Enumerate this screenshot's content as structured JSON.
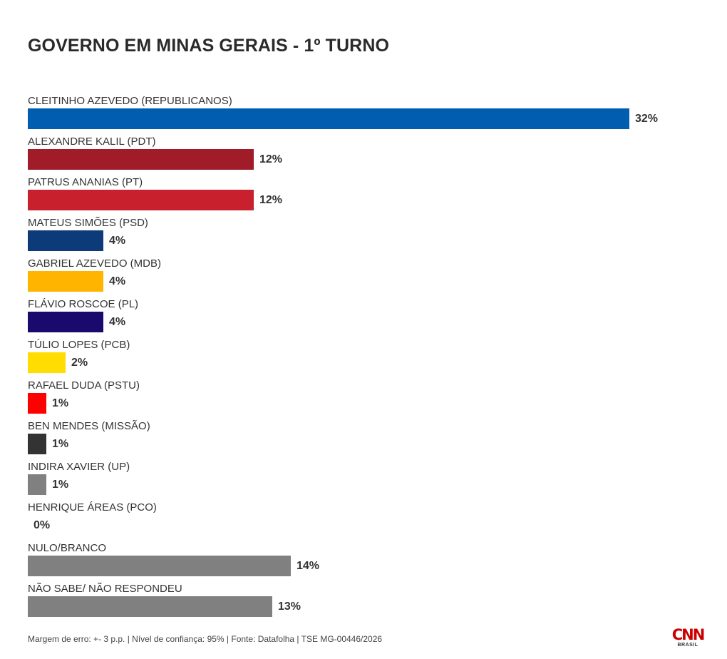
{
  "chart_data": {
    "type": "bar",
    "orientation": "horizontal",
    "title": "GOVERNO EM MINAS GERAIS - 1º TURNO",
    "unit": "%",
    "categories": [
      "CLEITINHO AZEVEDO (REPUBLICANOS)",
      "ALEXANDRE KALIL (PDT)",
      "PATRUS ANANIAS (PT)",
      "MATEUS SIMÕES (PSD)",
      "GABRIEL AZEVEDO (MDB)",
      "FLÁVIO ROSCOE (PL)",
      "TÚLIO LOPES (PCB)",
      "RAFAEL DUDA (PSTU)",
      "BEN MENDES (MISSÃO)",
      "INDIRA XAVIER (UP)",
      "HENRIQUE ÁREAS (PCO)",
      "NULO/BRANCO",
      "NÃO SABE/ NÃO RESPONDEU"
    ],
    "values": [
      32,
      12,
      12,
      4,
      4,
      4,
      2,
      1,
      1,
      1,
      0,
      14,
      13
    ],
    "value_labels": [
      "32%",
      "12%",
      "12%",
      "4%",
      "4%",
      "4%",
      "2%",
      "1%",
      "1%",
      "1%",
      "0%",
      "14%",
      "13%"
    ],
    "colors": [
      "#005db0",
      "#a01c28",
      "#c9202e",
      "#0d3b7a",
      "#ffb400",
      "#1a0a6e",
      "#ffdd00",
      "#ff0000",
      "#333333",
      "#808080",
      "#808080",
      "#808080",
      "#808080"
    ],
    "xlim": [
      0,
      32
    ],
    "grid": false,
    "legend": "none"
  },
  "footer": {
    "note": "Margem de erro: +- 3 p.p. | Nível de confiança: 95% | Fonte: Datafolha | TSE MG-00446/2026"
  },
  "logo": {
    "text": "CNN",
    "sub": "BRASIL",
    "color": "#cc0000"
  }
}
